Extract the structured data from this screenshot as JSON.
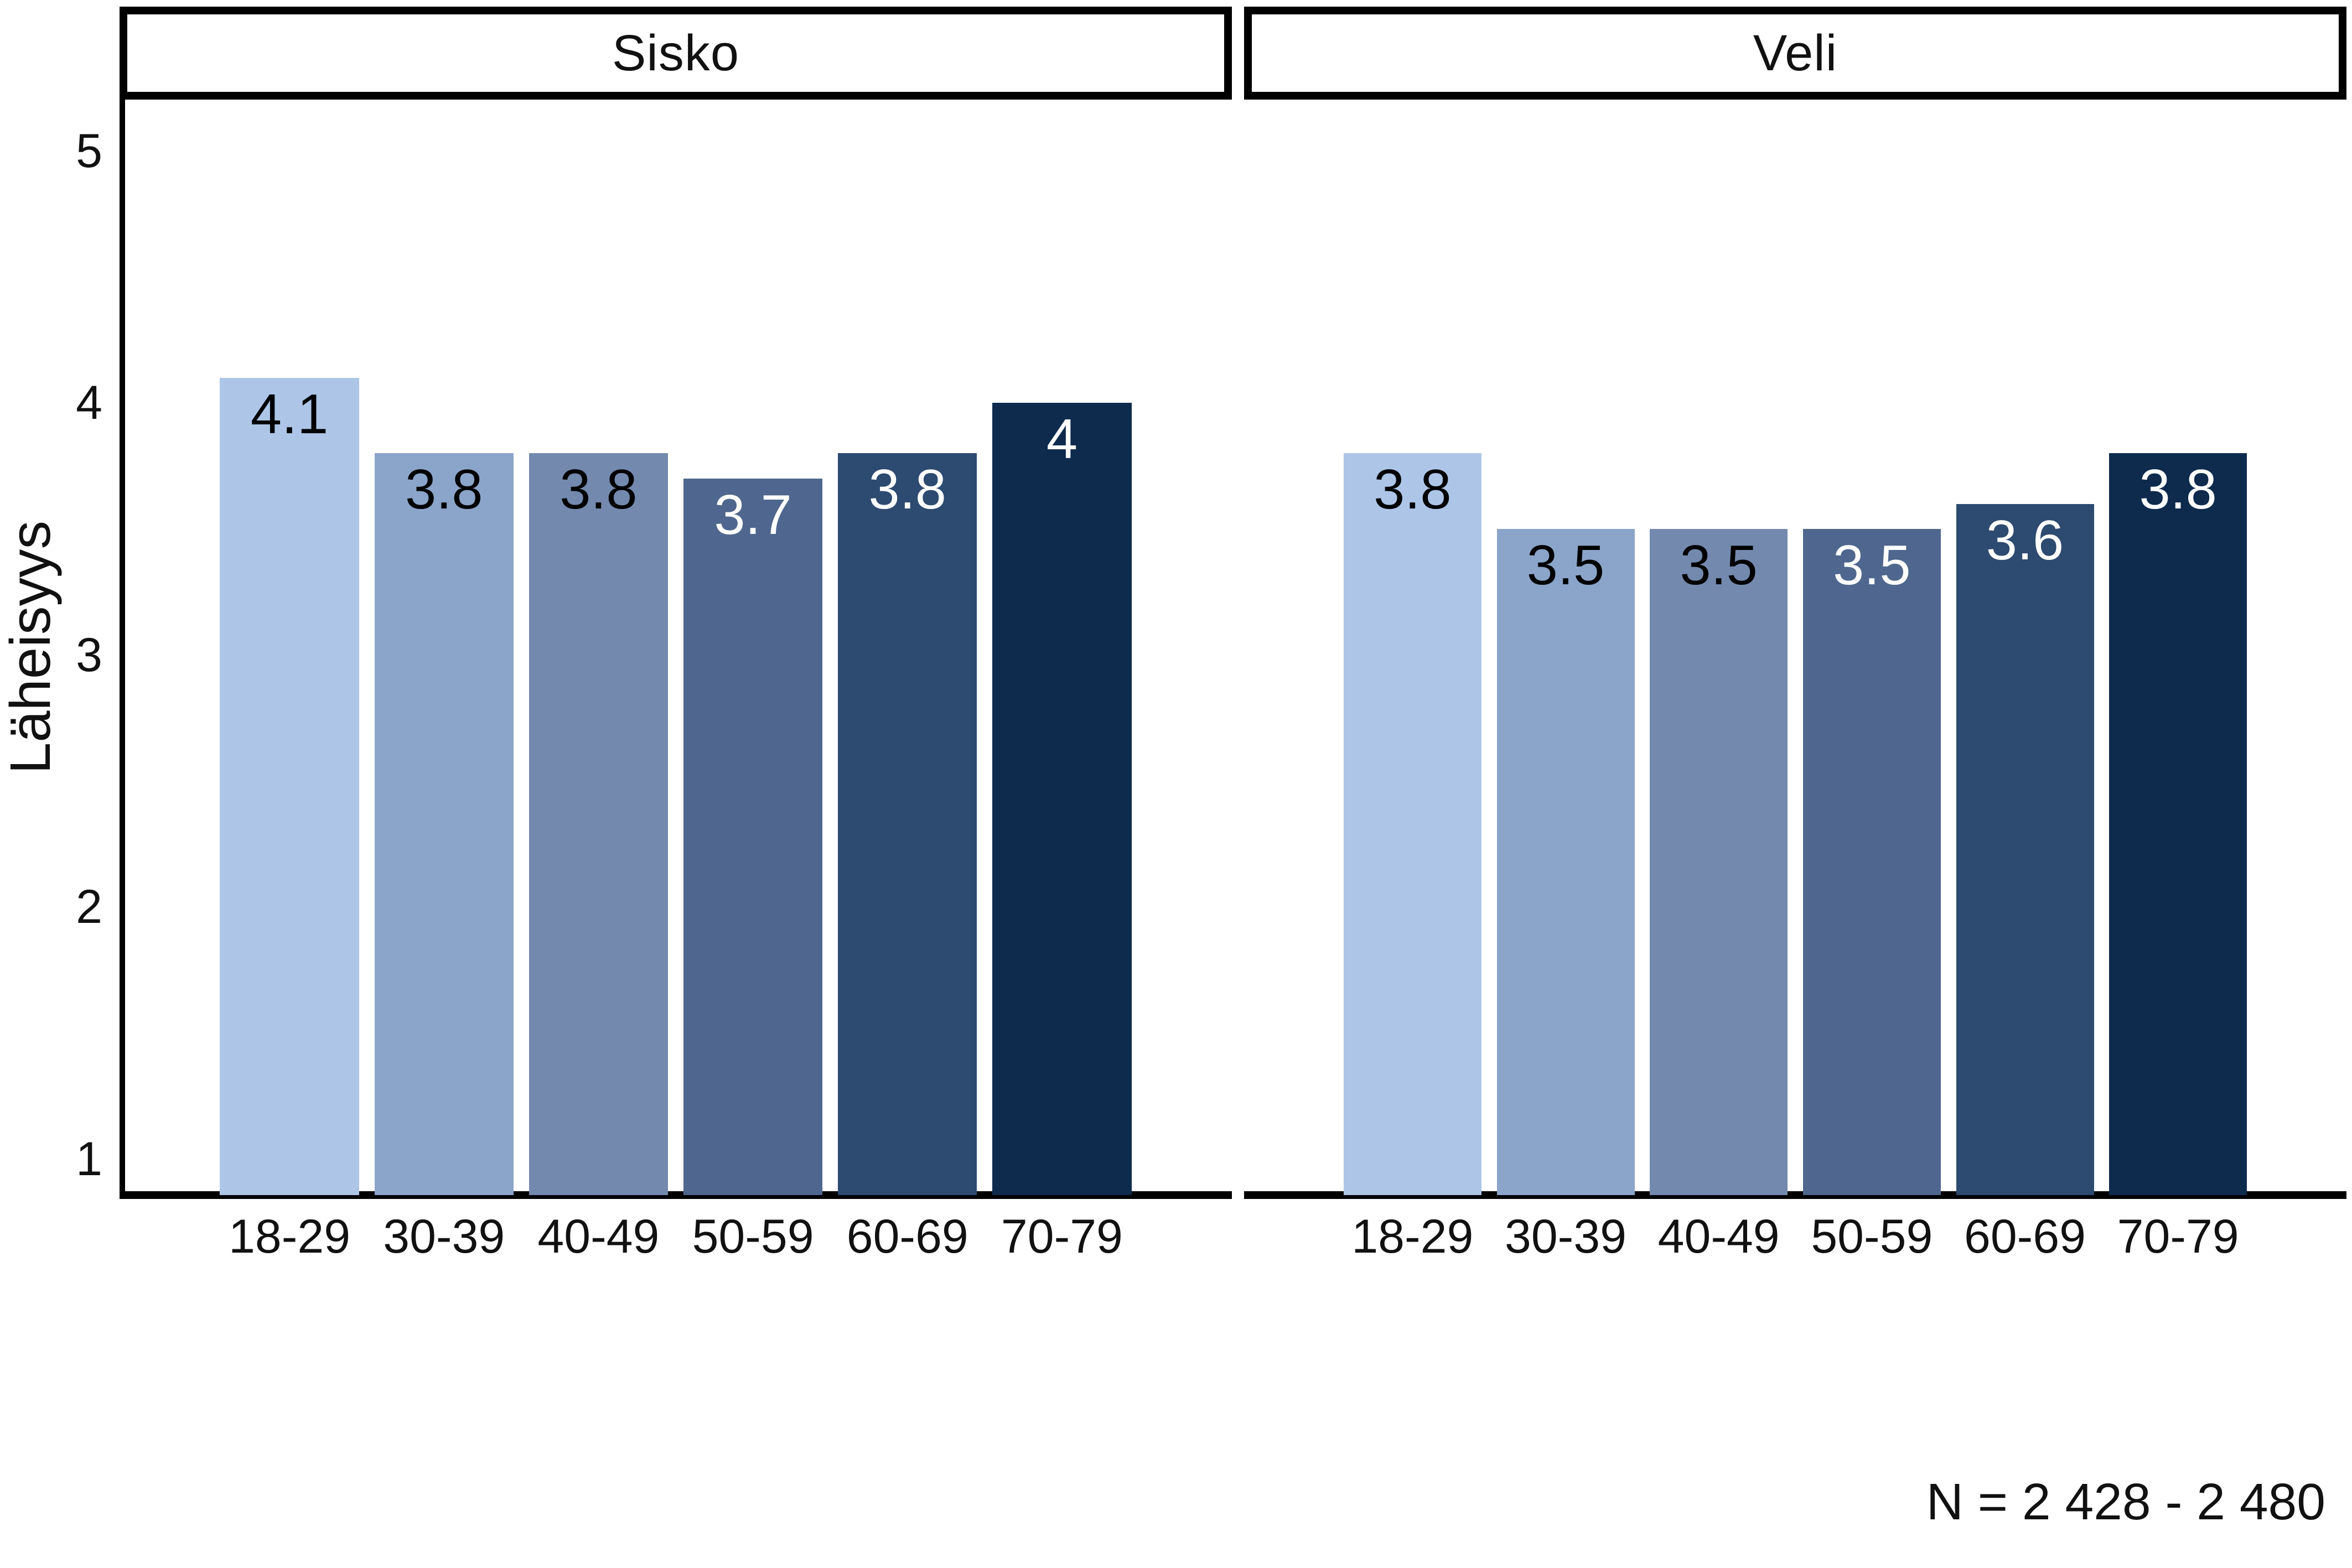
{
  "chart_data": {
    "type": "bar",
    "title": "",
    "ylabel": "Läheisyys",
    "xlabel": "",
    "y_ticks": [
      5,
      4,
      3,
      2,
      1
    ],
    "ylim": [
      1,
      5
    ],
    "grid": false,
    "legend": "none",
    "categories": [
      "18-29",
      "30-39",
      "40-49",
      "50-59",
      "60-69",
      "70-79"
    ],
    "facets": [
      {
        "title": "Sisko",
        "values": [
          4.1,
          3.8,
          3.8,
          3.7,
          3.8,
          4.0
        ],
        "labels": [
          "4.1",
          "3.8",
          "3.8",
          "3.7",
          "3.8",
          "4"
        ]
      },
      {
        "title": "Veli",
        "values": [
          3.8,
          3.5,
          3.5,
          3.5,
          3.6,
          3.8
        ],
        "labels": [
          "3.8",
          "3.5",
          "3.5",
          "3.5",
          "3.6",
          "3.8"
        ]
      }
    ],
    "note": "N = 2 428 - 2 480",
    "bar_colors": [
      "#adc6e8",
      "#8ba4c9",
      "#7389ae",
      "#4f678e",
      "#2d4a70",
      "#0e2b4d"
    ],
    "value_label_colors": [
      "#000000",
      "#000000",
      "#000000",
      "#ffffff",
      "#ffffff",
      "#ffffff"
    ],
    "axis_color": "#000000",
    "background": "#ffffff"
  }
}
